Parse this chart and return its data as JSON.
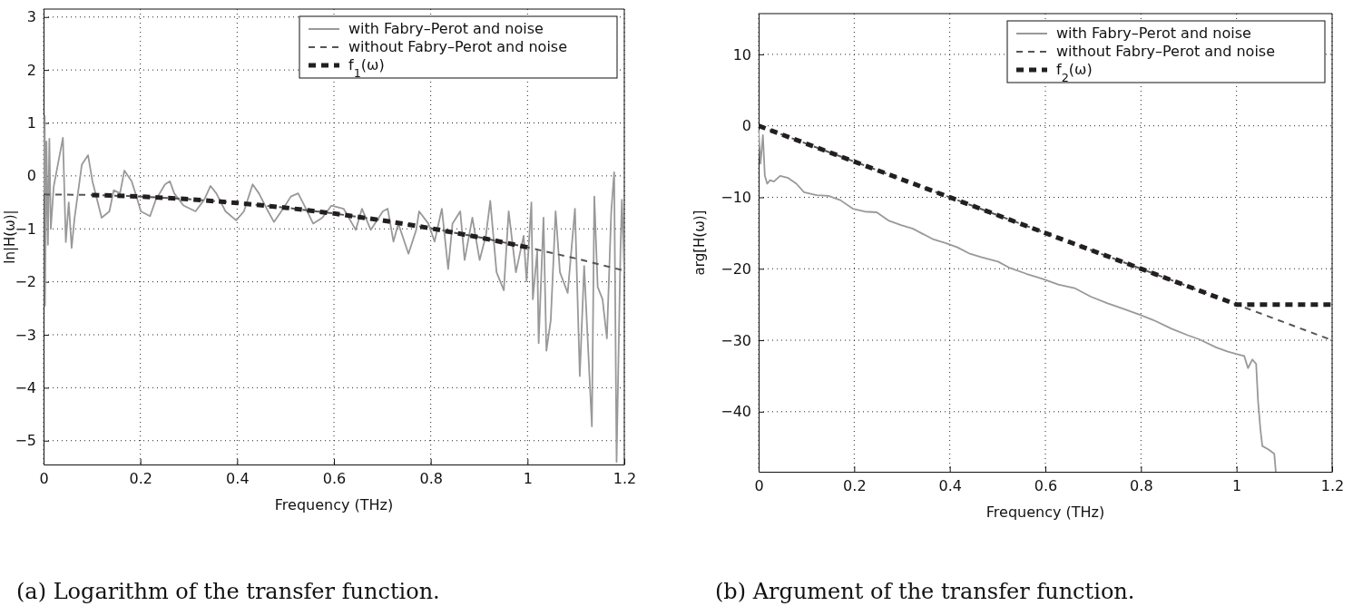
{
  "chart_data": [
    {
      "type": "line",
      "xlabel": "Frequency (THz)",
      "ylabel": "ln|H(ω)|",
      "xlim": [
        0,
        1.2
      ],
      "ylim": [
        -5.45,
        3.15
      ],
      "xticks": [
        0,
        0.2,
        0.4,
        0.6,
        0.8,
        1,
        1.2
      ],
      "yticks": [
        -5,
        -4,
        -3,
        -2,
        -1,
        0,
        1,
        2,
        3
      ],
      "grid": true,
      "legend": "top right",
      "annotations": [
        "(a) Logarithm of the transfer function."
      ],
      "series": [
        {
          "name": "with Fabry–Perot and noise",
          "color": "#999999",
          "line_style": "solid",
          "x": [
            0,
            0.0025,
            0.003,
            0.006,
            0.009,
            0.012,
            0.015,
            0.021,
            0.04,
            0.046,
            0.052,
            0.058,
            0.064,
            0.07,
            0.079,
            0.092,
            0.101,
            0.12,
            0.136,
            0.145,
            0.158,
            0.167,
            0.182,
            0.192,
            0.201,
            0.22,
            0.232,
            0.251,
            0.261,
            0.27,
            0.289,
            0.314,
            0.332,
            0.345,
            0.357,
            0.376,
            0.398,
            0.414,
            0.432,
            0.445,
            0.464,
            0.476,
            0.495,
            0.511,
            0.526,
            0.539,
            0.557,
            0.576,
            0.595,
            0.62,
            0.645,
            0.658,
            0.676,
            0.701,
            0.711,
            0.723,
            0.733,
            0.754,
            0.77,
            0.776,
            0.795,
            0.808,
            0.823,
            0.836,
            0.845,
            0.861,
            0.87,
            0.886,
            0.901,
            0.914,
            0.923,
            0.936,
            0.951,
            0.961,
            0.976,
            0.992,
            0.998,
            1.008,
            1.011,
            1.02,
            1.023,
            1.033,
            1.039,
            1.048,
            1.058,
            1.067,
            1.083,
            1.098,
            1.108,
            1.117,
            1.133,
            1.138,
            1.145,
            1.155,
            1.164,
            1.173,
            1.179,
            1.184,
            1.192,
            1.195,
            1.2
          ],
          "values": [
            -0.35,
            1.13,
            -2.45,
            0.65,
            -1.3,
            0.7,
            -1.0,
            -0.2,
            0.72,
            -1.25,
            -0.5,
            -1.36,
            -0.8,
            -0.4,
            0.21,
            0.39,
            -0.1,
            -0.79,
            -0.67,
            -0.27,
            -0.33,
            0.1,
            -0.1,
            -0.39,
            -0.67,
            -0.76,
            -0.45,
            -0.16,
            -0.1,
            -0.33,
            -0.56,
            -0.67,
            -0.45,
            -0.19,
            -0.33,
            -0.67,
            -0.84,
            -0.67,
            -0.16,
            -0.33,
            -0.67,
            -0.87,
            -0.62,
            -0.39,
            -0.33,
            -0.56,
            -0.9,
            -0.79,
            -0.56,
            -0.62,
            -1.02,
            -0.62,
            -1.02,
            -0.67,
            -0.62,
            -1.24,
            -0.9,
            -1.47,
            -1.02,
            -0.67,
            -0.9,
            -1.24,
            -0.62,
            -1.76,
            -0.9,
            -0.67,
            -1.59,
            -0.79,
            -1.59,
            -1.13,
            -0.47,
            -1.82,
            -2.16,
            -0.67,
            -1.82,
            -1.13,
            -1.99,
            -0.5,
            -2.33,
            -1.42,
            -3.16,
            -0.79,
            -3.3,
            -2.73,
            -0.67,
            -1.82,
            -2.21,
            -0.62,
            -3.78,
            -1.7,
            -4.73,
            -0.39,
            -2.1,
            -2.33,
            -3.07,
            -0.67,
            0.07,
            -5.4,
            -1.42,
            -0.45,
            -1.82
          ]
        },
        {
          "name": "without Fabry–Perot and noise",
          "color": "#555555",
          "line_style": "dashed",
          "x": [
            0,
            0.1,
            0.2,
            0.3,
            0.4,
            0.5,
            0.6,
            0.7,
            0.8,
            0.9,
            1,
            1.1,
            1.2
          ],
          "values": [
            -0.35,
            -0.36,
            -0.39,
            -0.44,
            -0.51,
            -0.6,
            -0.71,
            -0.84,
            -0.99,
            -1.16,
            -1.35,
            -1.56,
            -1.79
          ]
        },
        {
          "name": "f$_{1}$(ω)",
          "color": "#231f20",
          "line_style": "dotted",
          "x": [
            0.1,
            0.2,
            0.3,
            0.4,
            0.5,
            0.6,
            0.7,
            0.8,
            0.9,
            1
          ],
          "values": [
            -0.36,
            -0.39,
            -0.44,
            -0.51,
            -0.6,
            -0.71,
            -0.84,
            -0.99,
            -1.16,
            -1.35
          ]
        }
      ]
    },
    {
      "type": "line",
      "xlabel": "Frequency (THz)",
      "ylabel": "arg[H(ω)]",
      "xlim": [
        0,
        1.2
      ],
      "ylim": [
        -48.4,
        15.7
      ],
      "xticks": [
        0,
        0.2,
        0.4,
        0.6,
        0.8,
        1,
        1.2
      ],
      "yticks": [
        -40,
        -30,
        -20,
        -10,
        0,
        10
      ],
      "grid": true,
      "legend": "top right",
      "annotations": [
        "(b) Argument of the transfer function."
      ],
      "series": [
        {
          "name": "with Fabry–Perot and noise",
          "color": "#999999",
          "line_style": "solid",
          "x": [
            0,
            0.004,
            0.009,
            0.013,
            0.018,
            0.024,
            0.032,
            0.045,
            0.062,
            0.079,
            0.095,
            0.121,
            0.146,
            0.171,
            0.197,
            0.222,
            0.247,
            0.273,
            0.298,
            0.323,
            0.34,
            0.366,
            0.391,
            0.416,
            0.442,
            0.467,
            0.501,
            0.526,
            0.56,
            0.594,
            0.627,
            0.661,
            0.695,
            0.729,
            0.763,
            0.796,
            0.83,
            0.864,
            0.898,
            0.923,
            0.957,
            0.982,
            0.999,
            1.016,
            1.024,
            1.033,
            1.041,
            1.045,
            1.05,
            1.054,
            1.067,
            1.079,
            1.082
          ],
          "values": [
            -0.7,
            -5.3,
            -1.3,
            -7,
            -8.1,
            -7.6,
            -7.8,
            -7,
            -7.3,
            -8.1,
            -9.3,
            -9.7,
            -9.8,
            -10.4,
            -11.6,
            -12,
            -12.1,
            -13.3,
            -13.9,
            -14.4,
            -15,
            -15.9,
            -16.4,
            -17,
            -17.9,
            -18.4,
            -19,
            -19.9,
            -20.7,
            -21.4,
            -22.2,
            -22.7,
            -23.9,
            -24.8,
            -25.6,
            -26.4,
            -27.3,
            -28.4,
            -29.3,
            -29.9,
            -31,
            -31.6,
            -31.9,
            -32.2,
            -33.9,
            -32.7,
            -33.3,
            -38.5,
            -42.5,
            -44.8,
            -45.3,
            -45.9,
            -48.3
          ]
        },
        {
          "name": "without Fabry–Perot and noise",
          "color": "#555555",
          "line_style": "dashed",
          "x": [
            0,
            1.2
          ],
          "values": [
            0,
            -30
          ]
        },
        {
          "name": "f$_{2}$(ω)",
          "color": "#231f20",
          "line_style": "dotted",
          "x": [
            0,
            1,
            1.2
          ],
          "values": [
            0,
            -25,
            -25
          ]
        }
      ]
    }
  ]
}
